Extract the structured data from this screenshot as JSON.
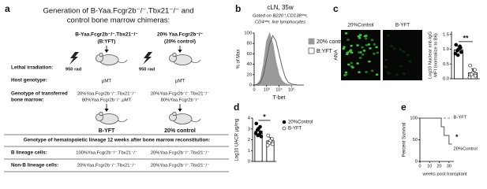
{
  "panel_a": {
    "label": "a",
    "title": [
      "Generation of B-Yaa.Fcgr2b⁻/⁻.Tbx21⁻/⁻ and",
      "control bone marrow chimeras:"
    ],
    "rows": [
      "Lethal irradiation:",
      "Host genotype:",
      "Genotype of transferred",
      "bone marrow:"
    ],
    "columns": [
      {
        "header": "B-Yaa.Fcgr2b⁻/⁻.Tbx21⁻/⁻",
        "subheader": "(B:YFT)",
        "dose": "950 rad",
        "host": "μMT",
        "marrow": [
          "20%Yaa.Fcgr2b⁻/⁻.Tbx21⁻/⁻",
          "80%Yaa.Fcgr2b⁻/⁻.μMT"
        ],
        "name": "B-YFT",
        "b_lineage": "100%Yaa.Fcgr2b⁻/⁻.Tbx21⁻/⁻",
        "non_b_lineage": "20%Yaa.Fcgr2b⁻/⁻.Tbx21⁻/⁻"
      },
      {
        "header": "20% Yaa.Fcgr2b⁻/⁻",
        "subheader": "(20% control)",
        "dose": "950 rad",
        "host": "μMT",
        "marrow": [
          "20%Yaa.Fcgr2b⁻/⁻.Tbx21⁻/⁻",
          "80%Yaa.Fcgr2b⁻/⁻"
        ],
        "name": "20% control",
        "b_lineage": "20%Yaa.Fcgr2b⁻/⁻.Tbx21⁻/⁻",
        "non_b_lineage": "20%Yaa.Fcgr2b⁻/⁻.Tbx21⁻/⁻"
      }
    ],
    "table_header": "Genotype of hematopoietic lineage 12 weeks after bone marrow reconstitution:",
    "table_rows": [
      "B lineage cells:",
      "Non-B lineage cells:"
    ]
  },
  "chart_data": [
    {
      "label": "b",
      "type": "line",
      "title": "cLN, 35w",
      "subtitle": [
        "Gated on B220⁺,CD138ⁿᵉᵍ,",
        "CD4ⁿᵉᵍ, live lymphocytes"
      ],
      "xlabel": "T-bet",
      "ylabel": "% of Max",
      "x": [
        0,
        0.25,
        0.5,
        0.75,
        1,
        1.25,
        1.5,
        1.75,
        2,
        2.25,
        2.5,
        2.75,
        3,
        3.25,
        3.5,
        3.75,
        4
      ],
      "xlim": [
        0,
        4
      ],
      "xticks": [
        0,
        {
          "value": 1,
          "label": "10³"
        },
        {
          "value": 2,
          "label": "10⁴"
        },
        {
          "value": 3,
          "label": "10⁵"
        }
      ],
      "ylim": [
        0,
        100
      ],
      "yticks": [
        0,
        20,
        40,
        60,
        80,
        100
      ],
      "series": [
        {
          "name": "20% control",
          "color": "#9a9a9a",
          "fill": true,
          "values": [
            0,
            2,
            10,
            40,
            85,
            100,
            80,
            45,
            20,
            8,
            3,
            1,
            0,
            0,
            0,
            0,
            0
          ]
        },
        {
          "name": "B:YFT",
          "color": "#555555",
          "fill": false,
          "values": [
            0,
            1,
            5,
            20,
            50,
            80,
            95,
            85,
            60,
            35,
            15,
            5,
            2,
            1,
            0,
            0,
            0
          ]
        }
      ]
    },
    {
      "label": "c",
      "type": "dotbar",
      "image_label": "ANA",
      "image_titles": [
        "20%Control",
        "B-YFT"
      ],
      "ylabel": [
        "Log10 Nuclear anti-IgG",
        "MFI (normalize to B6)"
      ],
      "ylim": [
        0,
        1.6
      ],
      "yticks": [
        {
          "value": 0,
          "label": "0.0"
        },
        0.5,
        {
          "value": 1,
          "label": "1.0"
        },
        1.5
      ],
      "annotation": "**",
      "series": [
        {
          "color": "#000000",
          "mean": 0.98,
          "error": 0.12,
          "values": [
            1.15,
            1.05,
            1.0,
            0.95,
            0.9,
            0.85,
            1.1,
            0.8
          ]
        },
        {
          "color": "#ffffff",
          "mean": 0.2,
          "error": 0.14,
          "values": [
            0.45,
            0.3,
            0.2,
            0.15,
            0.1,
            0.05
          ]
        }
      ]
    },
    {
      "label": "d",
      "type": "dotbar",
      "ylabel": "Log10 UACR μg/mg",
      "ylim": [
        0,
        4
      ],
      "yticks": [
        0,
        1,
        2,
        3,
        4
      ],
      "annotation": "*",
      "series": [
        {
          "name": "20%Control",
          "color": "#000000",
          "mean": 2.8,
          "error": 0.35,
          "values": [
            3.5,
            3.2,
            3.0,
            2.9,
            2.7,
            2.6,
            2.5,
            2.4,
            2.3
          ]
        },
        {
          "name": "B-YFT",
          "color": "#ffffff",
          "mean": 1.9,
          "error": 0.3,
          "values": [
            2.4,
            2.1,
            1.9,
            1.7,
            1.6,
            1.5
          ]
        }
      ]
    },
    {
      "label": "e",
      "type": "step",
      "xlabel": "weeks post transplant",
      "ylabel": "Percent Survival",
      "xlim": [
        0,
        35
      ],
      "xticks": [
        0,
        10,
        20,
        30
      ],
      "ylim": [
        0,
        100
      ],
      "yticks": [
        0,
        50,
        100
      ],
      "annotation": "*",
      "series": [
        {
          "name": "B-YFT",
          "color": "#888888",
          "dash": true,
          "x": [
            0,
            33
          ],
          "values": [
            100,
            100
          ]
        },
        {
          "name": "20%Control",
          "color": "#555555",
          "dash": false,
          "x": [
            0,
            22,
            25,
            30,
            33
          ],
          "values": [
            100,
            80,
            60,
            40,
            40
          ]
        }
      ]
    }
  ]
}
